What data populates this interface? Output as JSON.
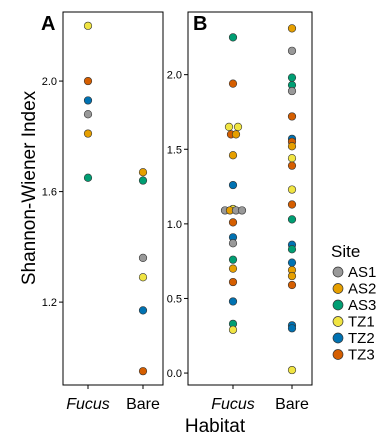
{
  "chart_data": {
    "type": "scatter",
    "ylabel": "Shannon-Wiener Index",
    "xlabel": "Habitat",
    "categories": [
      "Fucus",
      "Bare"
    ],
    "legend": {
      "title": "Site",
      "placement": "right",
      "items": [
        {
          "name": "AS1",
          "color": "#999999"
        },
        {
          "name": "AS2",
          "color": "#E69F00"
        },
        {
          "name": "AS3",
          "color": "#009E73"
        },
        {
          "name": "TZ1",
          "color": "#F0E442"
        },
        {
          "name": "TZ2",
          "color": "#0072B2"
        },
        {
          "name": "TZ3",
          "color": "#D55E00"
        }
      ]
    },
    "panels": [
      {
        "letter": "A",
        "ylim": [
          0.9,
          2.25
        ],
        "yticks": [
          1.2,
          1.6,
          2.0
        ],
        "ytick_labels": [
          "1.2",
          "1.6",
          "2.0"
        ],
        "points": [
          {
            "x": "Fucus",
            "y": 2.2,
            "site": "TZ1"
          },
          {
            "x": "Fucus",
            "y": 2.0,
            "site": "TZ3"
          },
          {
            "x": "Fucus",
            "y": 1.93,
            "site": "TZ2"
          },
          {
            "x": "Fucus",
            "y": 1.88,
            "site": "AS1"
          },
          {
            "x": "Fucus",
            "y": 1.81,
            "site": "AS2"
          },
          {
            "x": "Fucus",
            "y": 1.65,
            "site": "AS3"
          },
          {
            "x": "Bare",
            "y": 1.67,
            "site": "AS2"
          },
          {
            "x": "Bare",
            "y": 1.64,
            "site": "AS3"
          },
          {
            "x": "Bare",
            "y": 1.36,
            "site": "AS1"
          },
          {
            "x": "Bare",
            "y": 1.29,
            "site": "TZ1"
          },
          {
            "x": "Bare",
            "y": 1.17,
            "site": "TZ2"
          },
          {
            "x": "Bare",
            "y": 0.95,
            "site": "TZ3"
          }
        ]
      },
      {
        "letter": "B",
        "ylim": [
          -0.08,
          2.42
        ],
        "yticks": [
          0.0,
          0.5,
          1.0,
          1.5,
          2.0
        ],
        "ytick_labels": [
          "0.0",
          "0.5",
          "1.0",
          "1.5",
          "2.0"
        ],
        "points": [
          {
            "x": "Fucus",
            "y": 2.25,
            "site": "AS3",
            "dx": 0
          },
          {
            "x": "Fucus",
            "y": 1.94,
            "site": "TZ3",
            "dx": 0
          },
          {
            "x": "Fucus",
            "y": 1.65,
            "site": "TZ1",
            "dx": -4
          },
          {
            "x": "Fucus",
            "y": 1.65,
            "site": "TZ1",
            "dx": 5
          },
          {
            "x": "Fucus",
            "y": 1.6,
            "site": "TZ3",
            "dx": -2
          },
          {
            "x": "Fucus",
            "y": 1.6,
            "site": "AS2",
            "dx": 3
          },
          {
            "x": "Fucus",
            "y": 1.46,
            "site": "AS2",
            "dx": 0
          },
          {
            "x": "Fucus",
            "y": 1.26,
            "site": "TZ2",
            "dx": 0
          },
          {
            "x": "Fucus",
            "y": 1.1,
            "site": "TZ1",
            "dx": 0
          },
          {
            "x": "Fucus",
            "y": 1.09,
            "site": "AS1",
            "dx": -8
          },
          {
            "x": "Fucus",
            "y": 1.09,
            "site": "AS2",
            "dx": -3
          },
          {
            "x": "Fucus",
            "y": 1.09,
            "site": "AS1",
            "dx": 3
          },
          {
            "x": "Fucus",
            "y": 1.09,
            "site": "AS1",
            "dx": 9
          },
          {
            "x": "Fucus",
            "y": 1.01,
            "site": "TZ3",
            "dx": 0
          },
          {
            "x": "Fucus",
            "y": 0.91,
            "site": "TZ2",
            "dx": 0
          },
          {
            "x": "Fucus",
            "y": 0.87,
            "site": "AS1",
            "dx": 0
          },
          {
            "x": "Fucus",
            "y": 0.76,
            "site": "AS3",
            "dx": 0
          },
          {
            "x": "Fucus",
            "y": 0.7,
            "site": "AS2",
            "dx": 0
          },
          {
            "x": "Fucus",
            "y": 0.61,
            "site": "TZ3",
            "dx": 0
          },
          {
            "x": "Fucus",
            "y": 0.48,
            "site": "TZ2",
            "dx": 0
          },
          {
            "x": "Fucus",
            "y": 0.33,
            "site": "AS3",
            "dx": 0
          },
          {
            "x": "Fucus",
            "y": 0.29,
            "site": "TZ1",
            "dx": 0
          },
          {
            "x": "Bare",
            "y": 2.31,
            "site": "AS2",
            "dx": 0
          },
          {
            "x": "Bare",
            "y": 2.16,
            "site": "AS1",
            "dx": 0
          },
          {
            "x": "Bare",
            "y": 1.98,
            "site": "AS3",
            "dx": 0
          },
          {
            "x": "Bare",
            "y": 1.93,
            "site": "AS3",
            "dx": 0
          },
          {
            "x": "Bare",
            "y": 1.89,
            "site": "AS1",
            "dx": 0
          },
          {
            "x": "Bare",
            "y": 1.72,
            "site": "TZ3",
            "dx": 0
          },
          {
            "x": "Bare",
            "y": 1.57,
            "site": "TZ2",
            "dx": 0
          },
          {
            "x": "Bare",
            "y": 1.55,
            "site": "TZ3",
            "dx": 0
          },
          {
            "x": "Bare",
            "y": 1.52,
            "site": "AS2",
            "dx": 0
          },
          {
            "x": "Bare",
            "y": 1.44,
            "site": "TZ1",
            "dx": 0
          },
          {
            "x": "Bare",
            "y": 1.39,
            "site": "TZ3",
            "dx": 0
          },
          {
            "x": "Bare",
            "y": 1.23,
            "site": "TZ1",
            "dx": 0
          },
          {
            "x": "Bare",
            "y": 1.13,
            "site": "TZ3",
            "dx": 0
          },
          {
            "x": "Bare",
            "y": 1.03,
            "site": "AS3",
            "dx": 0
          },
          {
            "x": "Bare",
            "y": 0.86,
            "site": "TZ2",
            "dx": 0
          },
          {
            "x": "Bare",
            "y": 0.83,
            "site": "AS3",
            "dx": 0
          },
          {
            "x": "Bare",
            "y": 0.74,
            "site": "TZ2",
            "dx": 0
          },
          {
            "x": "Bare",
            "y": 0.69,
            "site": "AS2",
            "dx": 0
          },
          {
            "x": "Bare",
            "y": 0.65,
            "site": "AS2",
            "dx": 0
          },
          {
            "x": "Bare",
            "y": 0.59,
            "site": "TZ3",
            "dx": 0
          },
          {
            "x": "Bare",
            "y": 0.32,
            "site": "TZ2",
            "dx": 0
          },
          {
            "x": "Bare",
            "y": 0.3,
            "site": "TZ2",
            "dx": 0
          },
          {
            "x": "Bare",
            "y": 0.02,
            "site": "TZ1",
            "dx": 0
          }
        ]
      }
    ]
  }
}
